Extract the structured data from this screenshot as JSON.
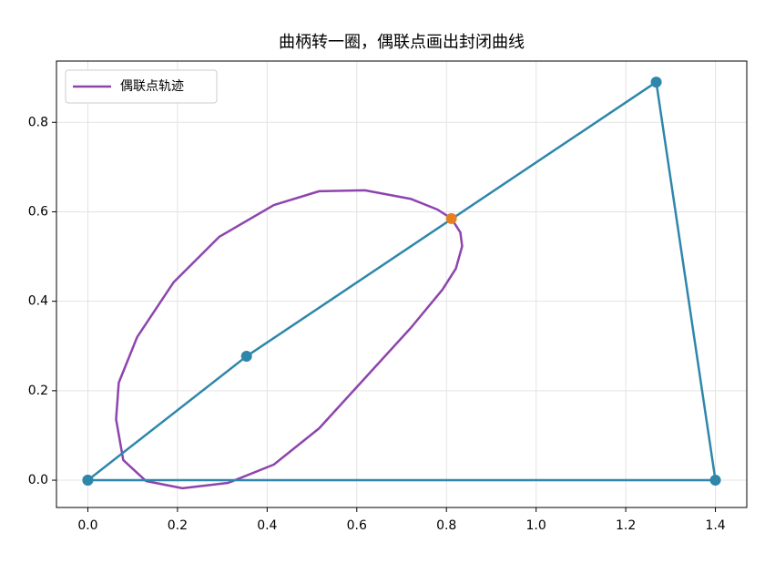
{
  "chart_data": {
    "type": "line",
    "title": "曲柄转一圈，偶联点画出封闭曲线",
    "xlim": [
      -0.07,
      1.47
    ],
    "ylim": [
      -0.061,
      0.937
    ],
    "xticks": [
      {
        "value": 0,
        "label": "0.0"
      },
      0.2,
      0.4,
      0.6,
      0.8,
      {
        "value": 1,
        "label": "1.0"
      },
      1.2,
      1.4
    ],
    "yticks": [
      {
        "value": 0,
        "label": "0.0"
      },
      0.2,
      0.4,
      0.6,
      0.8
    ],
    "grid": true,
    "legend": "upper-left",
    "series": [
      {
        "name": "偶联点轨迹",
        "color": "#8e44ad",
        "markers": false,
        "x": [
          0.811,
          0.831,
          0.835,
          0.821,
          0.791,
          0.72,
          0.618,
          0.516,
          0.415,
          0.313,
          0.211,
          0.13,
          0.079,
          0.063,
          0.069,
          0.11,
          0.191,
          0.293,
          0.415,
          0.516,
          0.618,
          0.72,
          0.78,
          0.811
        ],
        "values": [
          0.585,
          0.554,
          0.523,
          0.473,
          0.426,
          0.34,
          0.228,
          0.116,
          0.035,
          -0.006,
          -0.018,
          -0.002,
          0.045,
          0.136,
          0.218,
          0.32,
          0.442,
          0.544,
          0.615,
          0.646,
          0.648,
          0.629,
          0.605,
          0.585
        ]
      },
      {
        "color": "#2e86ab",
        "markers": true,
        "x": [
          0,
          0.354,
          1.268,
          1.4,
          0
        ],
        "values": [
          0,
          0.277,
          0.89,
          0,
          0
        ]
      },
      {
        "color": "#e67e22",
        "markers": true,
        "x": [
          0.811
        ],
        "values": [
          0.585
        ]
      }
    ]
  }
}
